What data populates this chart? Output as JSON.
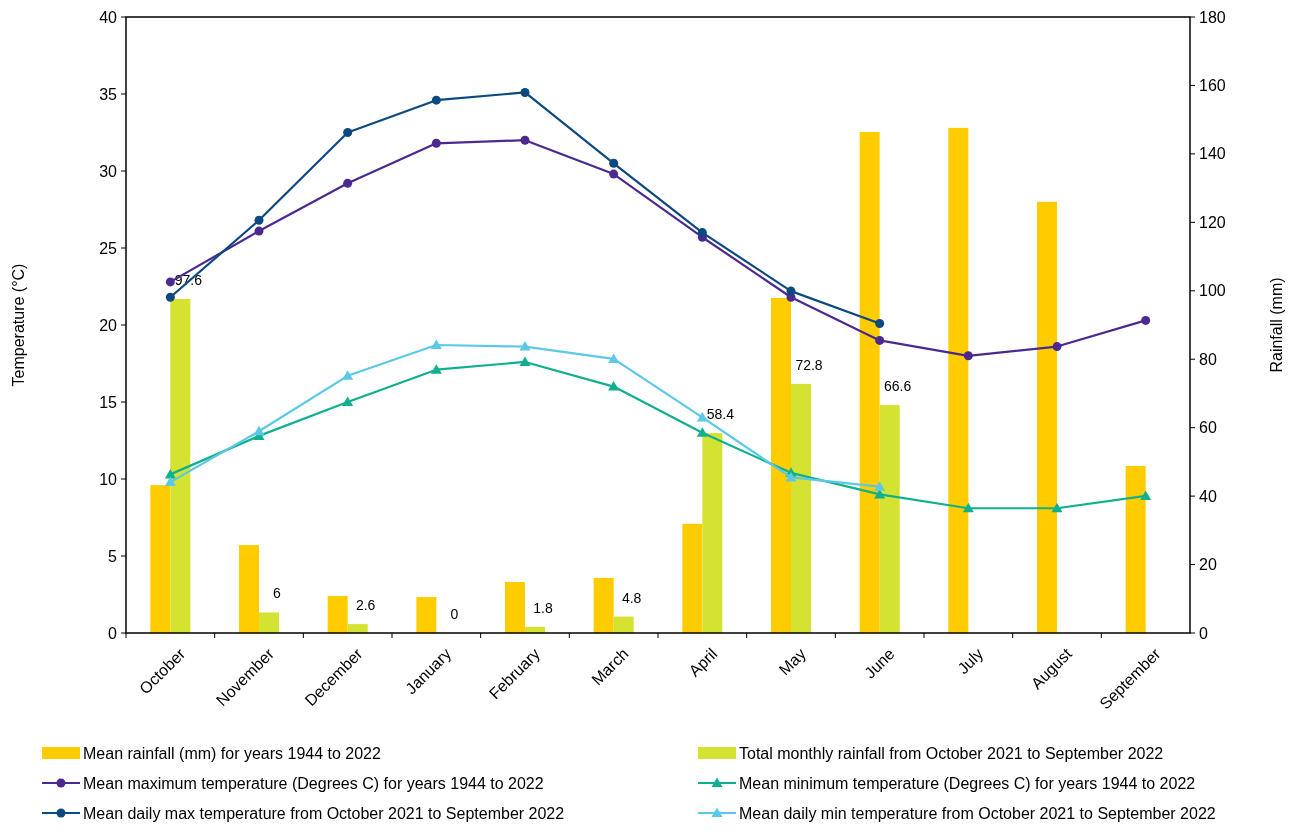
{
  "chart_data": {
    "type": "bar",
    "categories": [
      "October",
      "November",
      "December",
      "January",
      "February",
      "March",
      "April",
      "May",
      "June",
      "July",
      "August",
      "September"
    ],
    "ylabel": "Temperature (°C)",
    "y2label": "Rainfall (mm)",
    "ylim": [
      0,
      40
    ],
    "yticks": [
      0,
      5,
      10,
      15,
      20,
      25,
      30,
      35,
      40
    ],
    "y2lim": [
      0,
      180
    ],
    "y2ticks": [
      0,
      20,
      40,
      60,
      80,
      100,
      120,
      140,
      160,
      180
    ],
    "grid": false,
    "legend": "bottom",
    "series": [
      {
        "name": "Mean rainfall (mm) for years 1944 to 2022",
        "axis": "y2",
        "color": "#ffcc00",
        "values": [
          43.2,
          25.7,
          10.8,
          10.5,
          14.9,
          16.1,
          31.9,
          97.9,
          146.4,
          147.6,
          126,
          48.8
        ]
      },
      {
        "name": "Total monthly rainfall from October 2021 to September 2022",
        "axis": "y2",
        "color": "#d4e332",
        "values": [
          97.6,
          6,
          2.6,
          0,
          1.8,
          4.8,
          58.4,
          72.8,
          66.6,
          null,
          null,
          null
        ],
        "value_labels": [
          "97.6",
          "6",
          "2.6",
          "0",
          "1.8",
          "4.8",
          "58.4",
          "72.8",
          "66.6",
          null,
          null,
          null
        ]
      },
      {
        "name": "Mean maximum temperature (Degrees C) for years 1944 to 2022",
        "type": "line",
        "axis": "y",
        "marker": "circle",
        "color": "#4b2991",
        "values": [
          22.8,
          26.1,
          29.2,
          31.8,
          32.0,
          29.8,
          25.7,
          21.8,
          19.0,
          18.0,
          18.6,
          20.3
        ]
      },
      {
        "name": "Mean minimum temperature (Degrees C) for years 1944 to 2022",
        "type": "line",
        "axis": "y",
        "marker": "triangle",
        "color": "#0fb08f",
        "values": [
          10.3,
          12.8,
          15.0,
          17.1,
          17.6,
          16.0,
          13.0,
          10.4,
          9.0,
          8.1,
          8.1,
          8.9
        ]
      },
      {
        "name": "Mean daily max temperature from October 2021 to September 2022",
        "type": "line",
        "axis": "y",
        "marker": "circle",
        "color": "#0b4a80",
        "values": [
          21.8,
          26.8,
          32.5,
          34.6,
          35.1,
          30.5,
          26.0,
          22.2,
          20.1,
          null,
          null,
          null
        ]
      },
      {
        "name": "Mean daily min temperature from October 2021 to September 2022",
        "type": "line",
        "axis": "y",
        "marker": "triangle",
        "color": "#5bc8e8",
        "values": [
          9.8,
          13.1,
          16.7,
          18.7,
          18.6,
          17.8,
          14.0,
          10.1,
          9.5,
          null,
          null,
          null
        ]
      }
    ]
  }
}
